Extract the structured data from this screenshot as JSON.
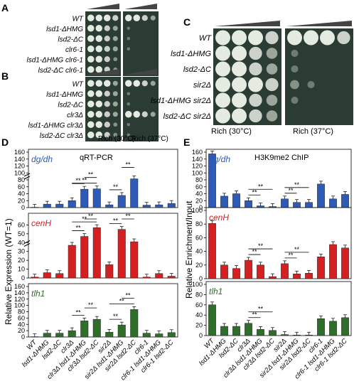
{
  "panel_letters": {
    "A": "A",
    "B": "B",
    "C": "C",
    "D": "D",
    "E": "E"
  },
  "spot_a": {
    "rows": [
      "WT",
      "lsd1-ΔHMG",
      "lsd2-ΔC",
      "clr6-1",
      "lsd1-ΔHMG clr6-1",
      "lsd2-ΔC clr6-1"
    ],
    "growth_30": [
      [
        5,
        5,
        5,
        4
      ],
      [
        5,
        5,
        4,
        3
      ],
      [
        5,
        5,
        4,
        3
      ],
      [
        5,
        5,
        4,
        3
      ],
      [
        5,
        5,
        4,
        2
      ],
      [
        5,
        5,
        4,
        2
      ]
    ],
    "growth_37": [
      [
        5,
        5,
        4,
        3
      ],
      [
        1,
        0,
        0,
        0
      ],
      [
        1,
        0,
        0,
        0
      ],
      [
        1,
        0,
        0,
        0
      ],
      [
        0,
        0,
        0,
        0
      ],
      [
        0,
        0,
        0,
        0
      ]
    ]
  },
  "spot_b": {
    "rows": [
      "WT",
      "lsd1-ΔHMG",
      "lsd2-ΔC",
      "clr3Δ",
      "lsd1-ΔHMG clr3Δ",
      "lsd2-ΔC clr3Δ"
    ],
    "growth_30": [
      [
        5,
        5,
        5,
        3
      ],
      [
        5,
        5,
        4,
        3
      ],
      [
        5,
        5,
        4,
        3
      ],
      [
        5,
        5,
        4,
        3
      ],
      [
        5,
        5,
        4,
        2
      ],
      [
        5,
        5,
        4,
        2
      ]
    ],
    "growth_37": [
      [
        5,
        5,
        4,
        3
      ],
      [
        1,
        0,
        0,
        0
      ],
      [
        1,
        0,
        0,
        0
      ],
      [
        5,
        5,
        4,
        3
      ],
      [
        1,
        0,
        0,
        0
      ],
      [
        1,
        0,
        0,
        0
      ]
    ],
    "condition_30": "Rich (30°C)",
    "condition_37": "Rich (37°C)"
  },
  "spot_c": {
    "rows": [
      "WT",
      "lsd1-ΔHMG",
      "lsd2-ΔC",
      "sir2Δ",
      "lsd1-ΔHMG sir2Δ",
      "lsd2-ΔC sir2Δ"
    ],
    "growth_30": [
      [
        5,
        5,
        5,
        4
      ],
      [
        5,
        5,
        4,
        3
      ],
      [
        5,
        5,
        4,
        3
      ],
      [
        5,
        5,
        5,
        4
      ],
      [
        5,
        5,
        4,
        3
      ],
      [
        5,
        5,
        4,
        3
      ]
    ],
    "growth_37": [
      [
        5,
        5,
        5,
        4
      ],
      [
        1,
        0,
        0,
        0
      ],
      [
        1,
        0,
        0,
        0
      ],
      [
        2,
        1,
        0,
        0
      ],
      [
        1,
        0,
        0,
        0
      ],
      [
        0,
        0,
        0,
        0
      ]
    ],
    "condition_30": "Rich (30°C)",
    "condition_37": "Rich (37°C)"
  },
  "chart_data": [
    {
      "type": "bar",
      "panel": "D",
      "title": "qRT-PCR",
      "ylabel": "Relative Expression (WT=1)",
      "categories": [
        "WT",
        "lsd1-ΔHMG",
        "lsd2-ΔC",
        "clr3Δ",
        "clr3Δ lsd1-ΔHMG",
        "clr3Δ lsd2-ΔC",
        "sir2Δ",
        "sir2Δ lsd1-ΔHMG",
        "sir2Δ lsd2-ΔC",
        "clr6-1",
        "clr6-1 lsd1-ΔHMG",
        "clr6-1 lsd2-ΔC"
      ],
      "series": [
        {
          "name": "dg/dh",
          "color": "#2e5bb5",
          "values": [
            1,
            10,
            10,
            20,
            53,
            54,
            8,
            35,
            83,
            7,
            8,
            12
          ],
          "ylim": [
            0,
            160
          ],
          "yticks": [
            0,
            20,
            40,
            60,
            80,
            100,
            120,
            140,
            160
          ],
          "axis_break": true,
          "sig": [
            [
              3,
              4
            ],
            [
              4,
              5
            ],
            [
              6,
              7
            ],
            [
              7,
              8
            ],
            [
              3,
              5
            ]
          ]
        },
        {
          "name": "cenH",
          "color": "#d42020",
          "values": [
            1,
            6,
            5,
            37,
            47,
            57,
            15,
            55,
            41,
            1,
            5,
            2
          ],
          "ylim": [
            0,
            70
          ],
          "yticks": [
            0,
            10,
            20,
            30,
            40,
            50,
            60
          ],
          "axis_break": true,
          "sig": [
            [
              3,
              4
            ],
            [
              4,
              5
            ],
            [
              6,
              7
            ],
            [
              7,
              8
            ],
            [
              3,
              5
            ]
          ]
        },
        {
          "name": "tlh1",
          "color": "#2f6e2a",
          "values": [
            1,
            12,
            12,
            20,
            51,
            56,
            15,
            38,
            87,
            12,
            10,
            14
          ],
          "ylim": [
            0,
            160
          ],
          "yticks": [
            0,
            20,
            40,
            60,
            80,
            100,
            120,
            140,
            160
          ],
          "axis_break": false,
          "sig": [
            [
              3,
              4
            ],
            [
              4,
              5
            ],
            [
              6,
              7
            ],
            [
              7,
              8
            ],
            [
              6,
              8
            ]
          ]
        }
      ]
    },
    {
      "type": "bar",
      "panel": "E",
      "title": "H3K9me2 ChIP",
      "ylabel": "Relative Enrichment/Input",
      "categories": [
        "WT",
        "lsd1-ΔHMG",
        "lsd2-ΔC",
        "clr3Δ",
        "clr3Δ lsd1-ΔHMG",
        "clr3Δ lsd2-ΔC",
        "sir2Δ",
        "sir2Δ lsd1-ΔHMG",
        "sir2Δ lsd2-ΔC",
        "clr6-1",
        "clr6-1 lsd1-ΔHMG",
        "clr6-1 lsd2-ΔC"
      ],
      "series": [
        {
          "name": "dg/dh",
          "color": "#2e5bb5",
          "values": [
            155,
            33,
            40,
            20,
            5,
            3,
            25,
            15,
            15,
            68,
            25,
            38
          ],
          "ylim": [
            0,
            160
          ],
          "yticks": [
            0,
            20,
            40,
            60,
            80,
            100,
            120,
            140,
            160
          ],
          "sig": [
            [
              3,
              4
            ],
            [
              3,
              5
            ],
            [
              6,
              7
            ],
            [
              6,
              8
            ]
          ]
        },
        {
          "name": "cenH",
          "color": "#d42020",
          "values": [
            81,
            20,
            15,
            27,
            20,
            3,
            22,
            7,
            8,
            32,
            50,
            45
          ],
          "ylim": [
            0,
            100
          ],
          "yticks": [
            0,
            20,
            40,
            60,
            80,
            100
          ],
          "sig": [
            [
              3,
              4
            ],
            [
              3,
              5
            ],
            [
              6,
              7
            ],
            [
              6,
              8
            ]
          ]
        },
        {
          "name": "tlh1",
          "color": "#2f6e2a",
          "values": [
            60,
            18,
            18,
            24,
            12,
            10,
            2,
            1,
            1,
            33,
            28,
            35
          ],
          "ylim": [
            0,
            100
          ],
          "yticks": [
            0,
            20,
            40,
            60,
            80,
            100
          ],
          "sig": [
            [
              3,
              4
            ],
            [
              3,
              5
            ]
          ]
        }
      ]
    }
  ],
  "sig_label": "**"
}
